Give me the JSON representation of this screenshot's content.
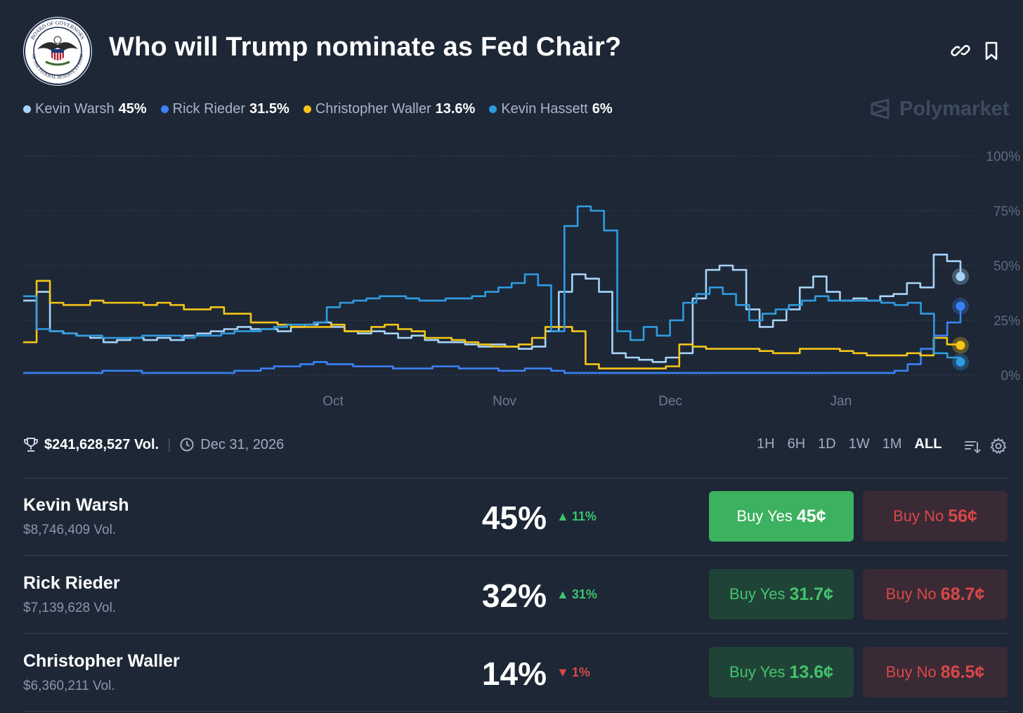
{
  "header": {
    "title": "Who will Trump nominate as Fed Chair?",
    "logo_text_top": "BOARD OF GOVERNORS",
    "logo_text_bottom": "OF THE FEDERAL RESERVE SYSTEM",
    "link_icon": "link-icon",
    "bookmark_icon": "bookmark-icon"
  },
  "brand": {
    "name": "Polymarket"
  },
  "legend": [
    {
      "name": "Kevin Warsh",
      "value": "45%",
      "color": "#a7d3f7"
    },
    {
      "name": "Rick Rieder",
      "value": "31.5%",
      "color": "#3b82f6"
    },
    {
      "name": "Christopher Waller",
      "value": "13.6%",
      "color": "#f5c518"
    },
    {
      "name": "Kevin Hassett",
      "value": "6%",
      "color": "#2f9be0"
    }
  ],
  "chart_data": {
    "type": "line",
    "yticks": [
      "100%",
      "75%",
      "50%",
      "25%",
      "0%"
    ],
    "ylim": [
      0,
      100
    ],
    "xticks": [
      "Oct",
      "Nov",
      "Dec",
      "Jan"
    ],
    "grid": true,
    "series": [
      {
        "name": "Kevin Warsh",
        "color": "#a7d3f7",
        "values": [
          34,
          38,
          20,
          19,
          18,
          17,
          15,
          16,
          17,
          16,
          17,
          16,
          18,
          19,
          20,
          21,
          22,
          21,
          21,
          20,
          22,
          23,
          24,
          22,
          20,
          19,
          20,
          19,
          17,
          18,
          16,
          15,
          15,
          14,
          13,
          14,
          13,
          12,
          13,
          20,
          38,
          46,
          44,
          38,
          10,
          8,
          7,
          6,
          8,
          10,
          35,
          48,
          50,
          48,
          30,
          22,
          25,
          30,
          40,
          45,
          38,
          34,
          35,
          34,
          36,
          37,
          42,
          40,
          55,
          52,
          45
        ]
      },
      {
        "name": "Rick Rieder",
        "color": "#3b82f6",
        "values": [
          1,
          1,
          1,
          1,
          1,
          1,
          2,
          2,
          2,
          1,
          1,
          1,
          1,
          1,
          1,
          1,
          2,
          2,
          3,
          4,
          4,
          5,
          6,
          5,
          5,
          4,
          4,
          4,
          3,
          3,
          3,
          4,
          4,
          3,
          3,
          3,
          2,
          2,
          3,
          3,
          2,
          1,
          1,
          1,
          1,
          1,
          1,
          1,
          1,
          1,
          1,
          1,
          1,
          1,
          1,
          1,
          1,
          1,
          1,
          1,
          1,
          1,
          1,
          1,
          1,
          1,
          2,
          5,
          12,
          18,
          24,
          31.5
        ]
      },
      {
        "name": "Christopher Waller",
        "color": "#f5c518",
        "values": [
          15,
          43,
          33,
          32,
          32,
          34,
          33,
          33,
          33,
          32,
          33,
          32,
          30,
          30,
          31,
          28,
          28,
          24,
          24,
          23,
          22,
          22,
          22,
          23,
          20,
          20,
          22,
          23,
          21,
          20,
          17,
          17,
          16,
          15,
          14,
          13,
          13,
          14,
          17,
          22,
          22,
          20,
          5,
          3,
          3,
          3,
          3,
          3,
          4,
          14,
          13,
          12,
          12,
          12,
          12,
          11,
          10,
          10,
          12,
          12,
          12,
          11,
          10,
          9,
          9,
          9,
          10,
          9,
          17,
          14,
          13.6
        ]
      },
      {
        "name": "Kevin Hassett",
        "color": "#2f9be0",
        "values": [
          36,
          21,
          20,
          19,
          18,
          18,
          17,
          17,
          17,
          18,
          18,
          18,
          17,
          18,
          18,
          19,
          20,
          20,
          21,
          22,
          23,
          23,
          24,
          31,
          33,
          34,
          35,
          36,
          36,
          35,
          34,
          34,
          35,
          35,
          36,
          38,
          40,
          42,
          46,
          41,
          20,
          68,
          77,
          75,
          66,
          20,
          16,
          22,
          18,
          25,
          33,
          37,
          40,
          37,
          32,
          25,
          28,
          30,
          32,
          34,
          36,
          34,
          34,
          34,
          34,
          33,
          32,
          33,
          28,
          10,
          8,
          6
        ]
      }
    ]
  },
  "info": {
    "trophy_icon": "trophy-icon",
    "volume": "$241,628,527 Vol.",
    "clock_icon": "clock-icon",
    "end_date": "Dec 31, 2026",
    "ranges": [
      "1H",
      "6H",
      "1D",
      "1W",
      "1M",
      "ALL"
    ],
    "active_range": "ALL",
    "sort_icon": "sort-icon",
    "settings_icon": "gear-icon"
  },
  "outcomes": [
    {
      "name": "Kevin Warsh",
      "volume": "$8,746,409 Vol.",
      "percent": "45%",
      "change": "11%",
      "direction": "up",
      "buy_yes_label": "Buy Yes",
      "buy_yes_price": "45¢",
      "buy_no_label": "Buy No",
      "buy_no_price": "56¢"
    },
    {
      "name": "Rick Rieder",
      "volume": "$7,139,628 Vol.",
      "percent": "32%",
      "change": "31%",
      "direction": "up",
      "buy_yes_label": "Buy Yes",
      "buy_yes_price": "31.7¢",
      "buy_no_label": "Buy No",
      "buy_no_price": "68.7¢"
    },
    {
      "name": "Christopher Waller",
      "volume": "$6,360,211 Vol.",
      "percent": "14%",
      "change": "1%",
      "direction": "down",
      "buy_yes_label": "Buy Yes",
      "buy_yes_price": "13.6¢",
      "buy_no_label": "Buy No",
      "buy_no_price": "86.5¢"
    }
  ],
  "colors": {
    "background": "#1d2736",
    "up": "#3cc46e",
    "down": "#d94848"
  }
}
